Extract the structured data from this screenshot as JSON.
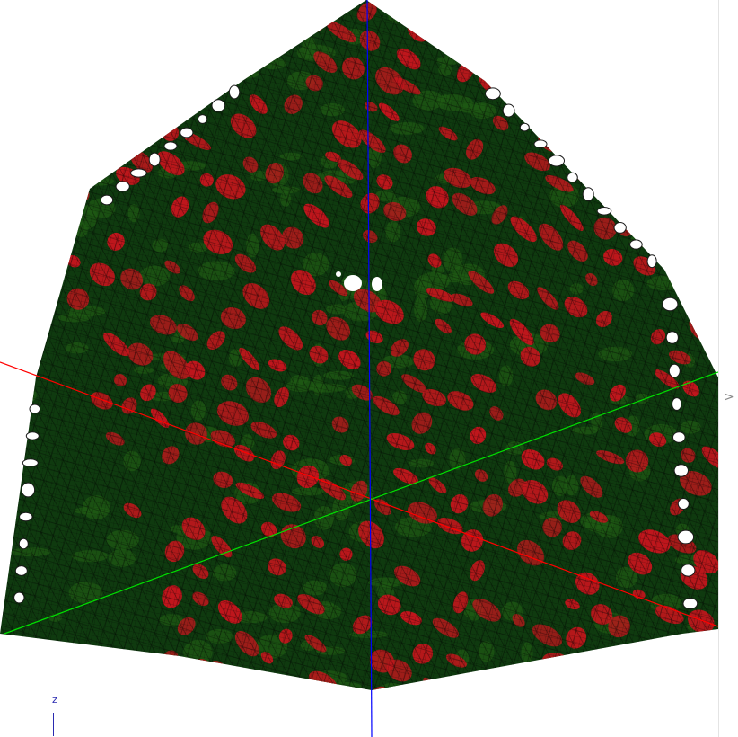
{
  "viewer": {
    "colors": {
      "background": "#ffffff",
      "mesh_base": "#0f3a0f",
      "mesh_green": "#1f5a14",
      "mesh_red": "#c0161c",
      "mesh_wire": "#000000",
      "axis_x": "#ff0000",
      "axis_y": "#00e000",
      "axis_z": "#0000ff"
    },
    "axis_legend": {
      "label": "z"
    },
    "toggle": {
      "label": ">",
      "icon": "chevron-right-icon"
    }
  }
}
